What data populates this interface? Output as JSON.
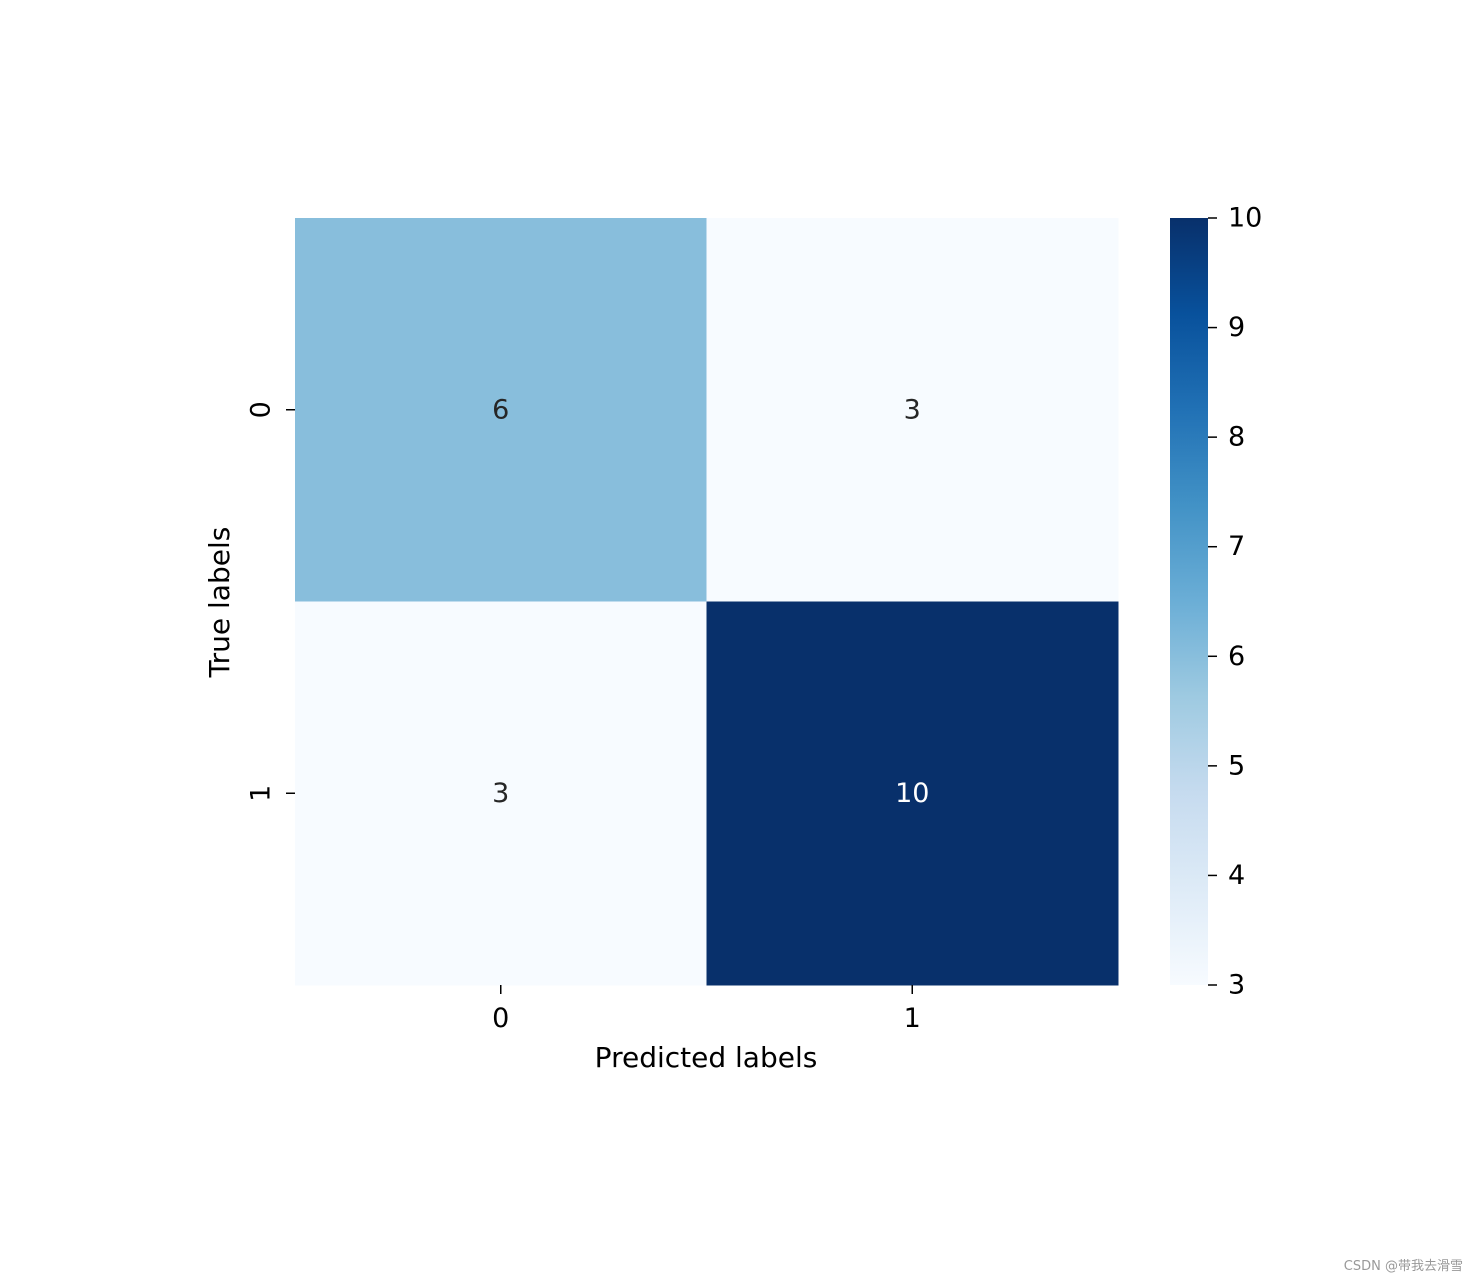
{
  "chart_data": {
    "type": "heatmap",
    "title": "",
    "xlabel": "Predicted labels",
    "ylabel": "True labels",
    "x_categories": [
      "0",
      "1"
    ],
    "y_categories": [
      "0",
      "1"
    ],
    "values": [
      [
        6,
        3
      ],
      [
        3,
        10
      ]
    ],
    "cell_labels": [
      [
        "6",
        "3"
      ],
      [
        "3",
        "10"
      ]
    ],
    "colormap": "Blues",
    "colorbar": {
      "range": [
        3,
        10
      ],
      "ticks": [
        "3",
        "4",
        "5",
        "6",
        "7",
        "8",
        "9",
        "10"
      ]
    },
    "colors": {
      "cmap_low": "#f7fbff",
      "cmap_high": "#08306b",
      "text_dark": "#262626",
      "text_light": "#ffffff"
    }
  },
  "watermark": "CSDN @带我去滑雪"
}
